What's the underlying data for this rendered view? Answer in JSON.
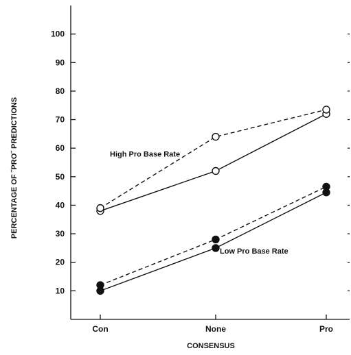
{
  "chart_data": {
    "type": "line",
    "categories": [
      "Con",
      "None",
      "Pro"
    ],
    "xlabel": "CONSENSUS",
    "ylabel": "PERCENTAGE OF ˝PRO˝ PREDICTIONS",
    "ylim": [
      0,
      110
    ],
    "yticks": [
      10,
      20,
      30,
      40,
      50,
      60,
      70,
      80,
      90,
      100
    ],
    "grid": false,
    "series": [
      {
        "group": "high",
        "marker": "open-circle",
        "dash": "solid",
        "values": [
          38,
          52,
          72
        ]
      },
      {
        "group": "high",
        "marker": "open-circle",
        "dash": "dashed",
        "values": [
          39,
          64,
          73.5
        ]
      },
      {
        "group": "low",
        "marker": "filled-circle",
        "dash": "solid",
        "values": [
          10,
          25,
          44.5
        ]
      },
      {
        "group": "low",
        "marker": "filled-circle",
        "dash": "dashed",
        "values": [
          12,
          28,
          46.5
        ]
      }
    ],
    "annotations": [
      {
        "text": "High Pro Base Rate",
        "category": "Con",
        "value": 57,
        "group": "high"
      },
      {
        "text": "Low Pro Base Rate",
        "category": "None",
        "value": 23,
        "group": "low"
      }
    ]
  }
}
